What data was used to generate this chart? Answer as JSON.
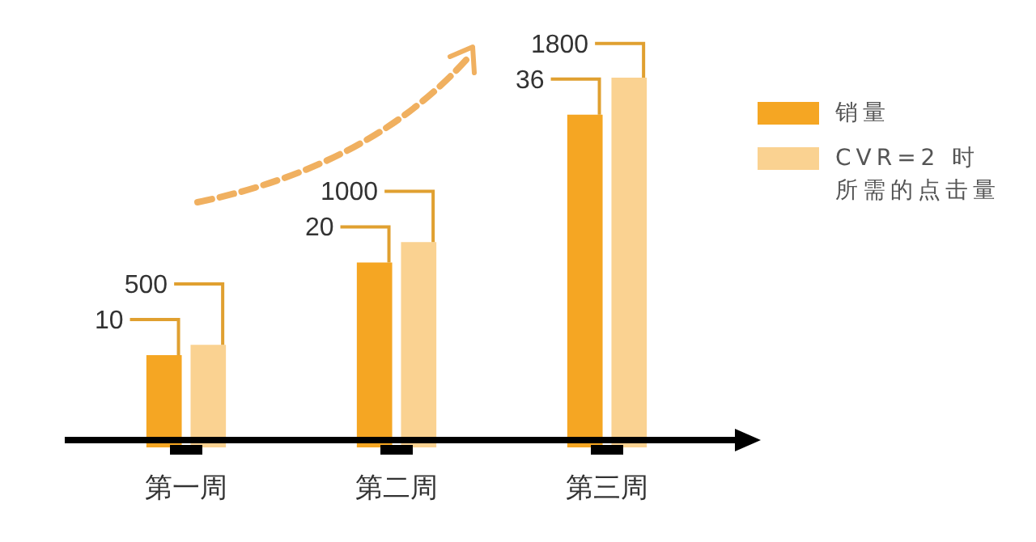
{
  "chart_data": {
    "type": "bar",
    "categories": [
      "第一周",
      "第二周",
      "第三周"
    ],
    "series": [
      {
        "name": "销量",
        "color": "#f5a623",
        "values": [
          10,
          20,
          36
        ]
      },
      {
        "name": "CVR=2 时所需的点击量",
        "color": "#fad291",
        "values": [
          500,
          1000,
          1800
        ],
        "axis": "y2"
      }
    ],
    "data_labels": true,
    "legend": "top right",
    "tick_labels": "x"
  }
}
